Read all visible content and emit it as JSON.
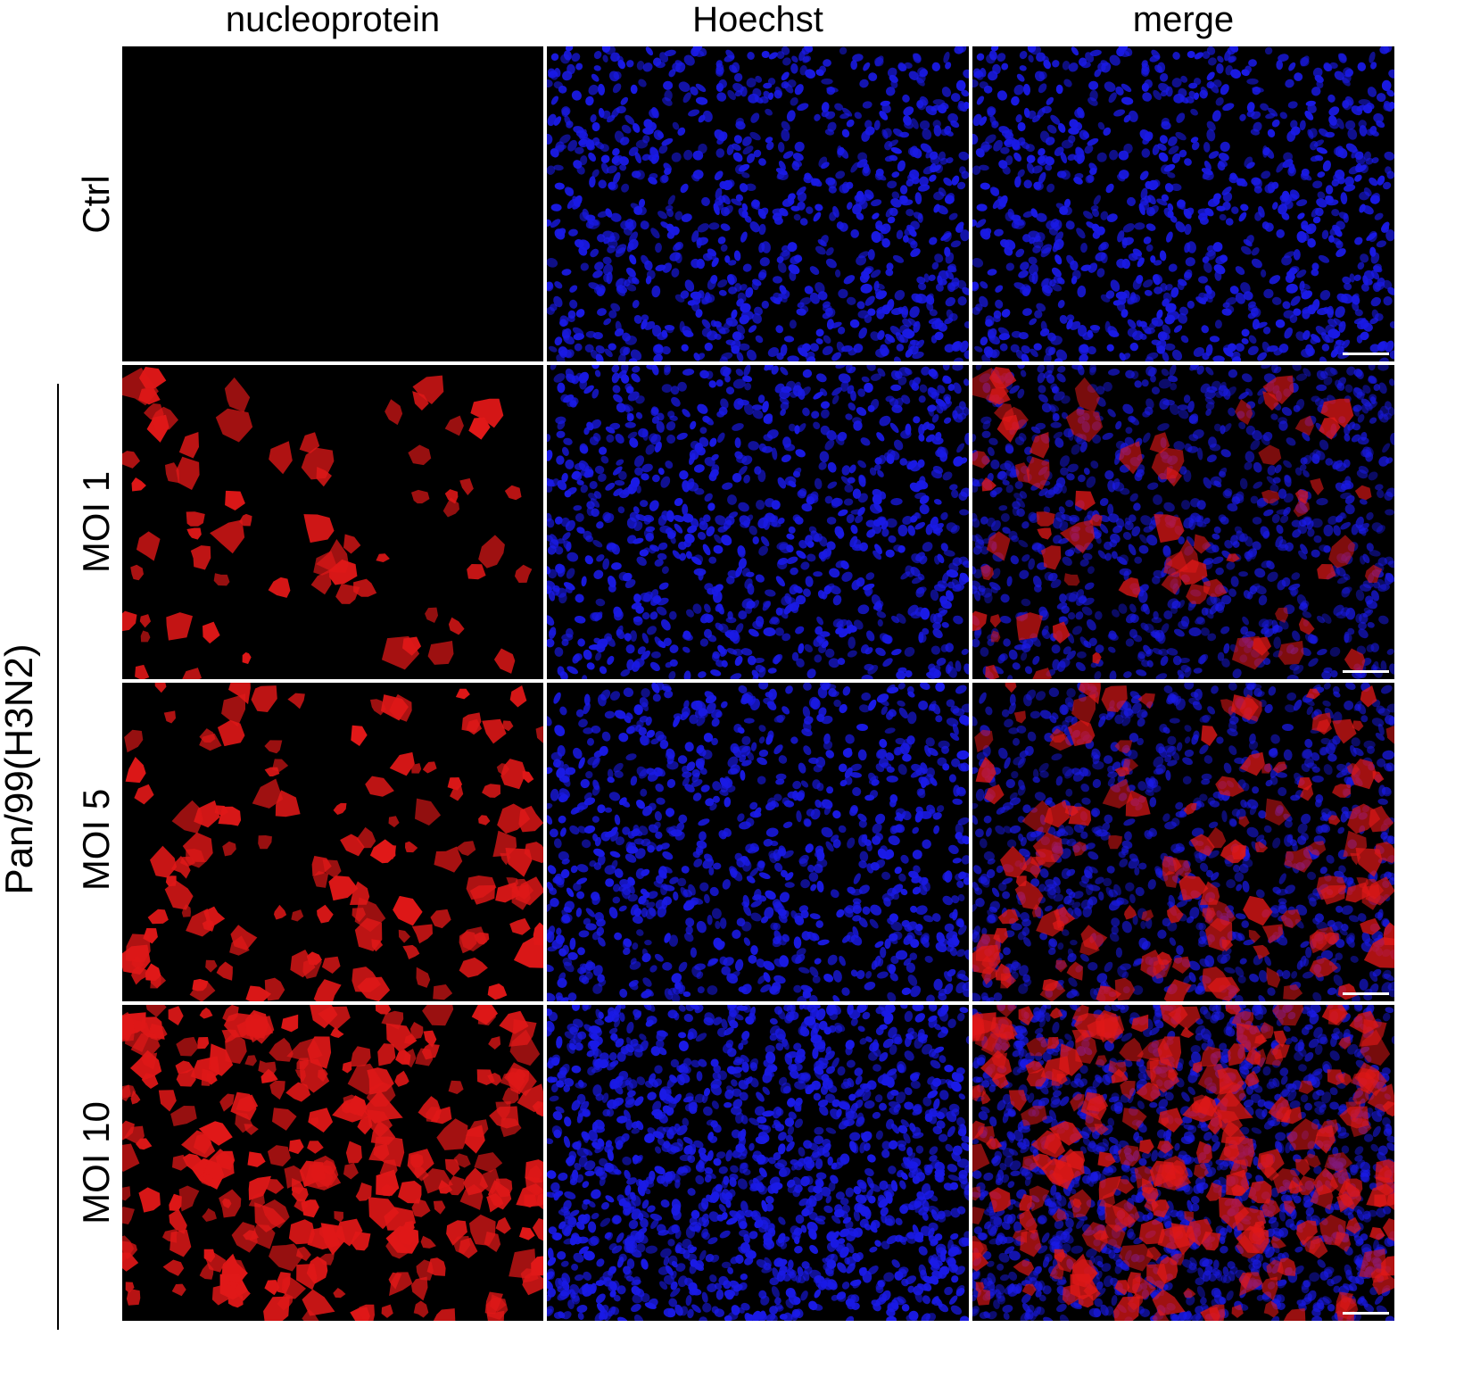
{
  "figure": {
    "columns": [
      "nucleoprotein",
      "Hoechst",
      "merge"
    ],
    "rows": [
      "Ctrl",
      "MOI 1",
      "MOI 5",
      "MOI 10"
    ],
    "group_label": "Pan/99(H3N2)",
    "grouped_rows": [
      "MOI 1",
      "MOI 5",
      "MOI 10"
    ],
    "channel_colors": {
      "nucleoprotein": "#e01818",
      "hoechst": "#1a1ae6",
      "background": "#000000",
      "scale_bar": "#ffffff"
    },
    "red_cell_density": [
      0,
      0.25,
      0.5,
      1.0
    ]
  }
}
